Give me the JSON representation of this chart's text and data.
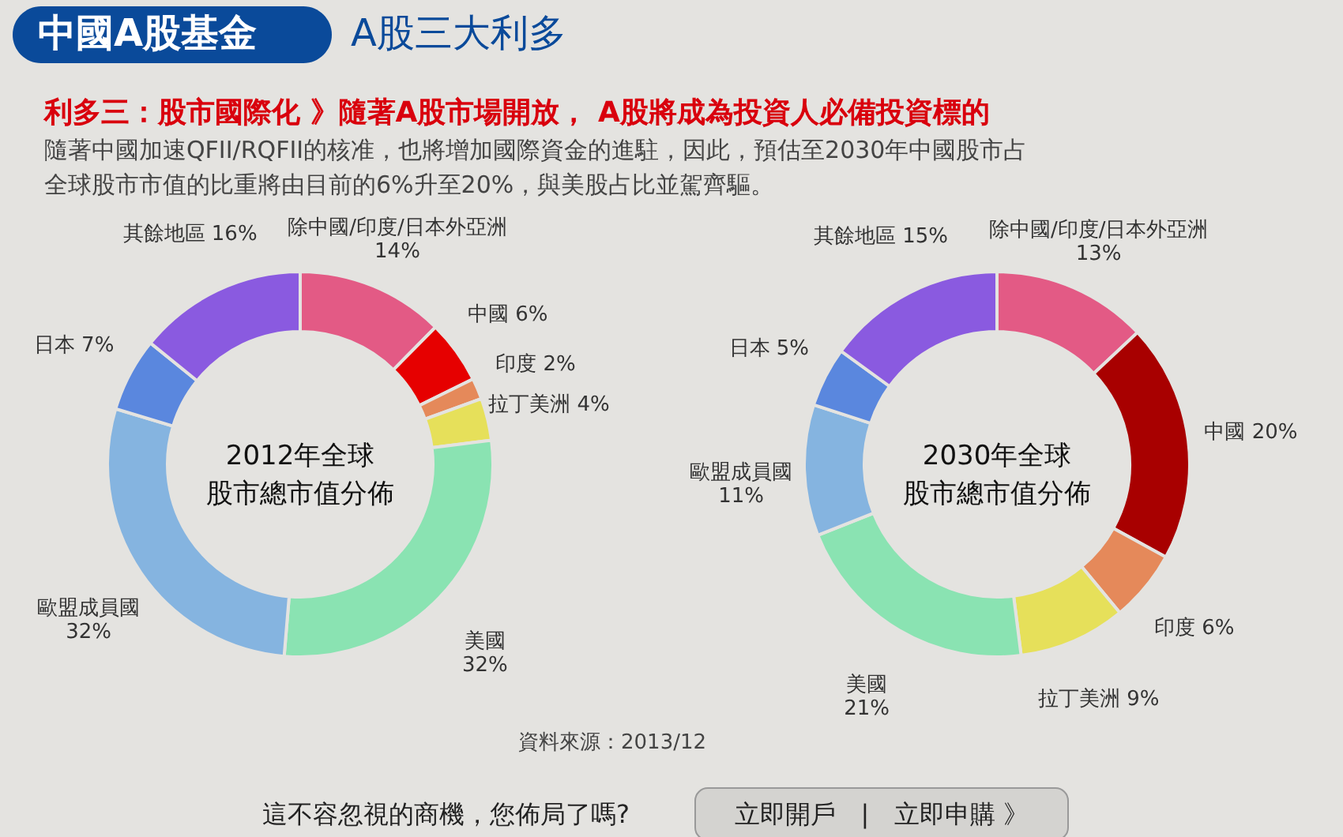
{
  "chart_data": [
    {
      "type": "other",
      "title": "中國A股基金",
      "subtitle": "A股三大利多",
      "annotations": [
        "利多三：股市國際化 》隨著A股市場開放， A股將成為投資人必備投資標的",
        "隨著中國加速QFII/RQFII的核准，也將增加國際資金的進駐，因此，預估至2030年中國股市占全球股市市值的比重將由目前的6%升至20%，與美股占比並駕齊驅。",
        "資料來源：2013/12",
        "這不容忽視的商機，您佈局了嗎?",
        "立即開戶　|　立即申購 》"
      ]
    },
    {
      "type": "donut",
      "title": "2012年全球股市總市值分佈",
      "legend": false,
      "data_labels": true,
      "categories": [
        "除中國/印度/日本外亞洲",
        "中國",
        "印度",
        "拉丁美洲",
        "美國",
        "歐盟成員國",
        "日本",
        "其餘地區"
      ],
      "values": [
        14,
        6,
        2,
        4,
        32,
        32,
        7,
        16
      ],
      "value_labels": [
        "14%",
        "6%",
        "2%",
        "4%",
        "32%",
        "32%",
        "7%",
        "16%"
      ],
      "colors": [
        "#e35a85",
        "#e60000",
        "#e5895a",
        "#e6e05a",
        "#8ae3b2",
        "#85b4e0",
        "#5a87de",
        "#8a5ae0"
      ]
    },
    {
      "type": "donut",
      "title": "2030年全球股市總市值分佈",
      "legend": false,
      "data_labels": true,
      "categories": [
        "除中國/印度/日本外亞洲",
        "中國",
        "印度",
        "拉丁美洲",
        "美國",
        "歐盟成員國",
        "日本",
        "其餘地區"
      ],
      "values": [
        13,
        20,
        6,
        9,
        21,
        11,
        5,
        15
      ],
      "value_labels": [
        "13%",
        "20%",
        "6%",
        "9%",
        "21%",
        "11%",
        "5%",
        "15%"
      ],
      "colors": [
        "#e35a85",
        "#a80000",
        "#e5895a",
        "#e6e05a",
        "#8ae3b2",
        "#85b4e0",
        "#5a87de",
        "#8a5ae0"
      ]
    }
  ]
}
